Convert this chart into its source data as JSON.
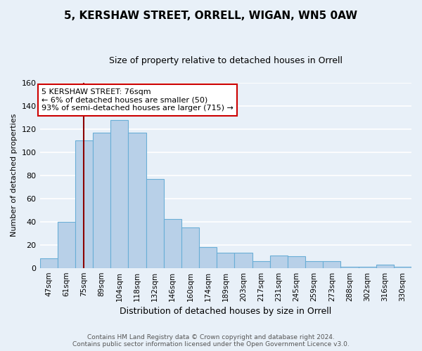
{
  "title": "5, KERSHAW STREET, ORRELL, WIGAN, WN5 0AW",
  "subtitle": "Size of property relative to detached houses in Orrell",
  "xlabel": "Distribution of detached houses by size in Orrell",
  "ylabel": "Number of detached properties",
  "categories": [
    "47sqm",
    "61sqm",
    "75sqm",
    "89sqm",
    "104sqm",
    "118sqm",
    "132sqm",
    "146sqm",
    "160sqm",
    "174sqm",
    "189sqm",
    "203sqm",
    "217sqm",
    "231sqm",
    "245sqm",
    "259sqm",
    "273sqm",
    "288sqm",
    "302sqm",
    "316sqm",
    "330sqm"
  ],
  "values": [
    8,
    40,
    110,
    117,
    128,
    117,
    77,
    42,
    35,
    18,
    13,
    13,
    6,
    11,
    10,
    6,
    6,
    1,
    1,
    3,
    1
  ],
  "bar_color": "#b8d0e8",
  "bar_edge_color": "#6aaed6",
  "bg_color": "#e8f0f8",
  "vline_x_index": 2,
  "vline_color": "#8b0000",
  "annotation_text": "5 KERSHAW STREET: 76sqm\n← 6% of detached houses are smaller (50)\n93% of semi-detached houses are larger (715) →",
  "annotation_box_color": "white",
  "annotation_box_edge": "#cc0000",
  "footer": "Contains HM Land Registry data © Crown copyright and database right 2024.\nContains public sector information licensed under the Open Government Licence v3.0.",
  "ylim": [
    0,
    160
  ],
  "yticks": [
    0,
    20,
    40,
    60,
    80,
    100,
    120,
    140,
    160
  ],
  "title_fontsize": 11,
  "subtitle_fontsize": 9,
  "xlabel_fontsize": 9,
  "ylabel_fontsize": 8,
  "tick_fontsize": 8,
  "xtick_fontsize": 7.5,
  "footer_fontsize": 6.5,
  "annotation_fontsize": 8
}
